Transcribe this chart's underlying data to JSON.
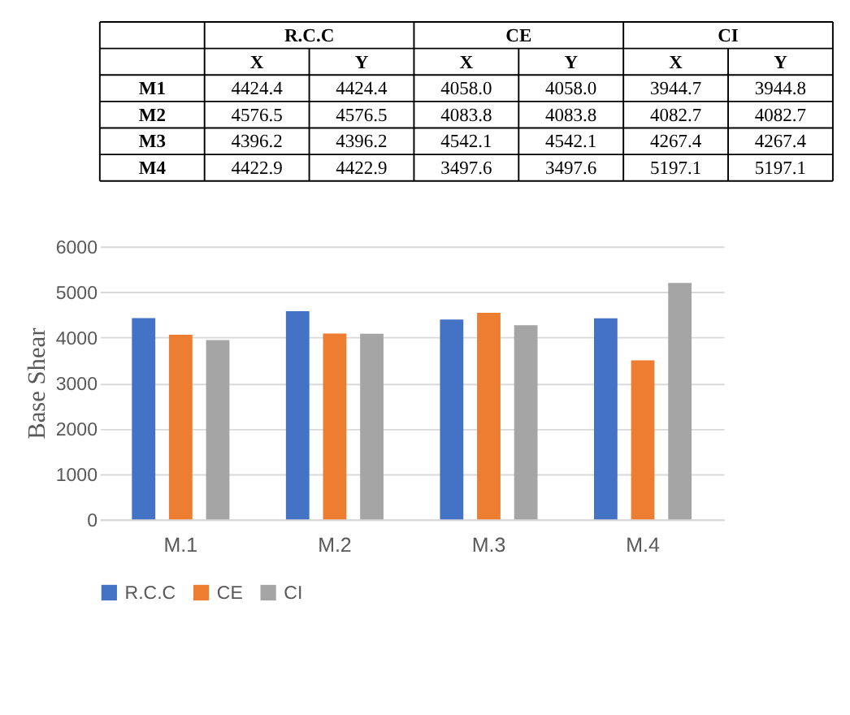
{
  "chart_data": [
    {
      "type": "other",
      "annotations": [
        "R.C.C",
        "CE",
        "CI",
        "X",
        "Y",
        "X",
        "Y",
        "X",
        "Y",
        "M1",
        "4424.4",
        "4424.4",
        "4058.0",
        "4058.0",
        "3944.7",
        "3944.8",
        "M2",
        "4576.5",
        "4576.5",
        "4083.8",
        "4083.8",
        "4082.7",
        "4082.7",
        "M3",
        "4396.2",
        "4396.2",
        "4542.1",
        "4542.1",
        "4267.4",
        "4267.4",
        "M4",
        "4422.9",
        "4422.9",
        "3497.6",
        "3497.6",
        "5197.1",
        "5197.1"
      ]
    },
    {
      "type": "bar",
      "categories": [
        "M.1",
        "M.2",
        "M.3",
        "M.4"
      ],
      "series": [
        {
          "name": "R.C.C",
          "color": "#4472c4",
          "values": [
            4424.4,
            4576.5,
            4396.2,
            4422.9
          ]
        },
        {
          "name": "CE",
          "color": "#ed7d31",
          "values": [
            4058.0,
            4083.8,
            4542.1,
            3497.6
          ]
        },
        {
          "name": "CI",
          "color": "#a5a5a5",
          "values": [
            3944.7,
            4082.7,
            4267.4,
            5197.1
          ]
        }
      ],
      "ylabel": "Base Shear",
      "ylim": [
        0,
        6000
      ],
      "yticks": [
        0,
        {
          "value": 1000,
          "label": "1000"
        },
        {
          "value": 2000,
          "label": "2000"
        },
        {
          "value": 3000,
          "label": "3000"
        },
        {
          "value": 4000,
          "label": "4000"
        },
        {
          "value": 5000,
          "label": "5000"
        },
        {
          "value": 6000,
          "label": "6000"
        }
      ],
      "grid": "y",
      "legend": "bottom"
    }
  ]
}
